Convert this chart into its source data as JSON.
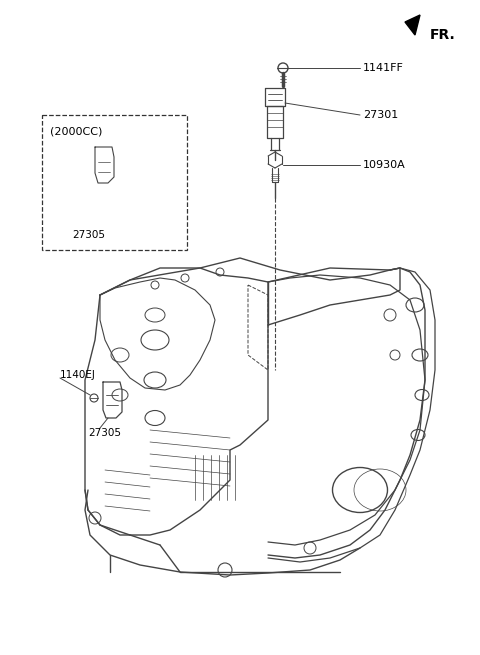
{
  "bg_color": "#ffffff",
  "line_color": "#333333",
  "fr_label": "FR.",
  "label_1141FF": "1141FF",
  "label_27301": "27301",
  "label_10930A": "10930A",
  "label_1140EJ": "1140EJ",
  "label_27305a": "27305",
  "label_27305b": "27305",
  "label_2000CC": "(2000CC)",
  "figsize": [
    4.8,
    6.55
  ],
  "dpi": 100,
  "engine_color": "#444444",
  "engine_lw": 1.0
}
